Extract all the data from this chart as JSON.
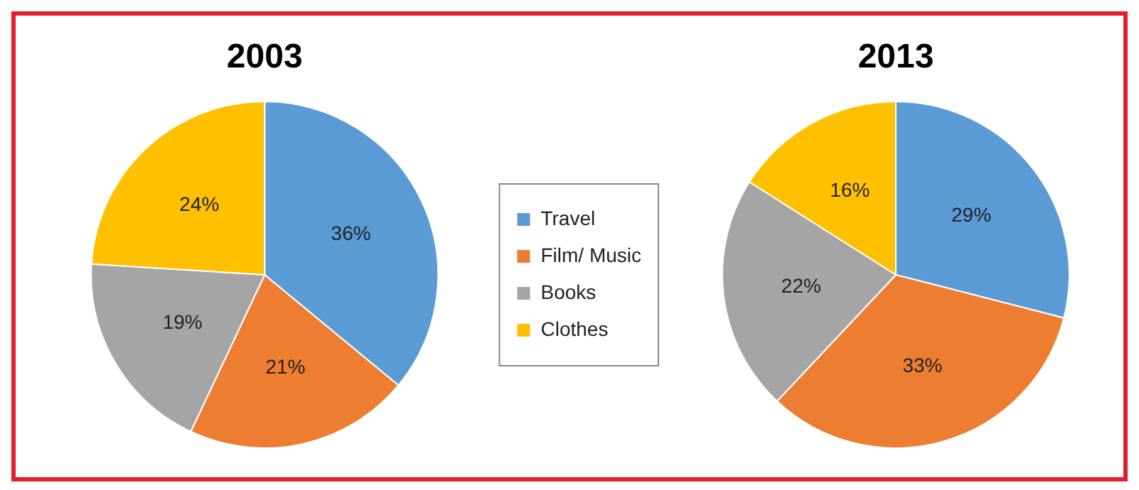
{
  "chart_data": [
    {
      "type": "pie",
      "title": "2003",
      "categories": [
        "Travel",
        "Film/ Music",
        "Books",
        "Clothes"
      ],
      "values": [
        36,
        21,
        19,
        24
      ],
      "colors": [
        "#5b9bd5",
        "#ed7d31",
        "#a5a5a5",
        "#ffc000"
      ],
      "value_labels": [
        "36%",
        "21%",
        "19%",
        "24%"
      ],
      "legend": "right"
    },
    {
      "type": "pie",
      "title": "2013",
      "categories": [
        null,
        null,
        null,
        null
      ],
      "values": [
        29,
        33,
        22,
        16
      ],
      "colors": [
        "#5b9bd5",
        "#ed7d31",
        "#a5a5a5",
        "#ffc000"
      ],
      "value_labels": [
        "29%",
        "33%",
        "22%",
        "16%"
      ]
    }
  ]
}
